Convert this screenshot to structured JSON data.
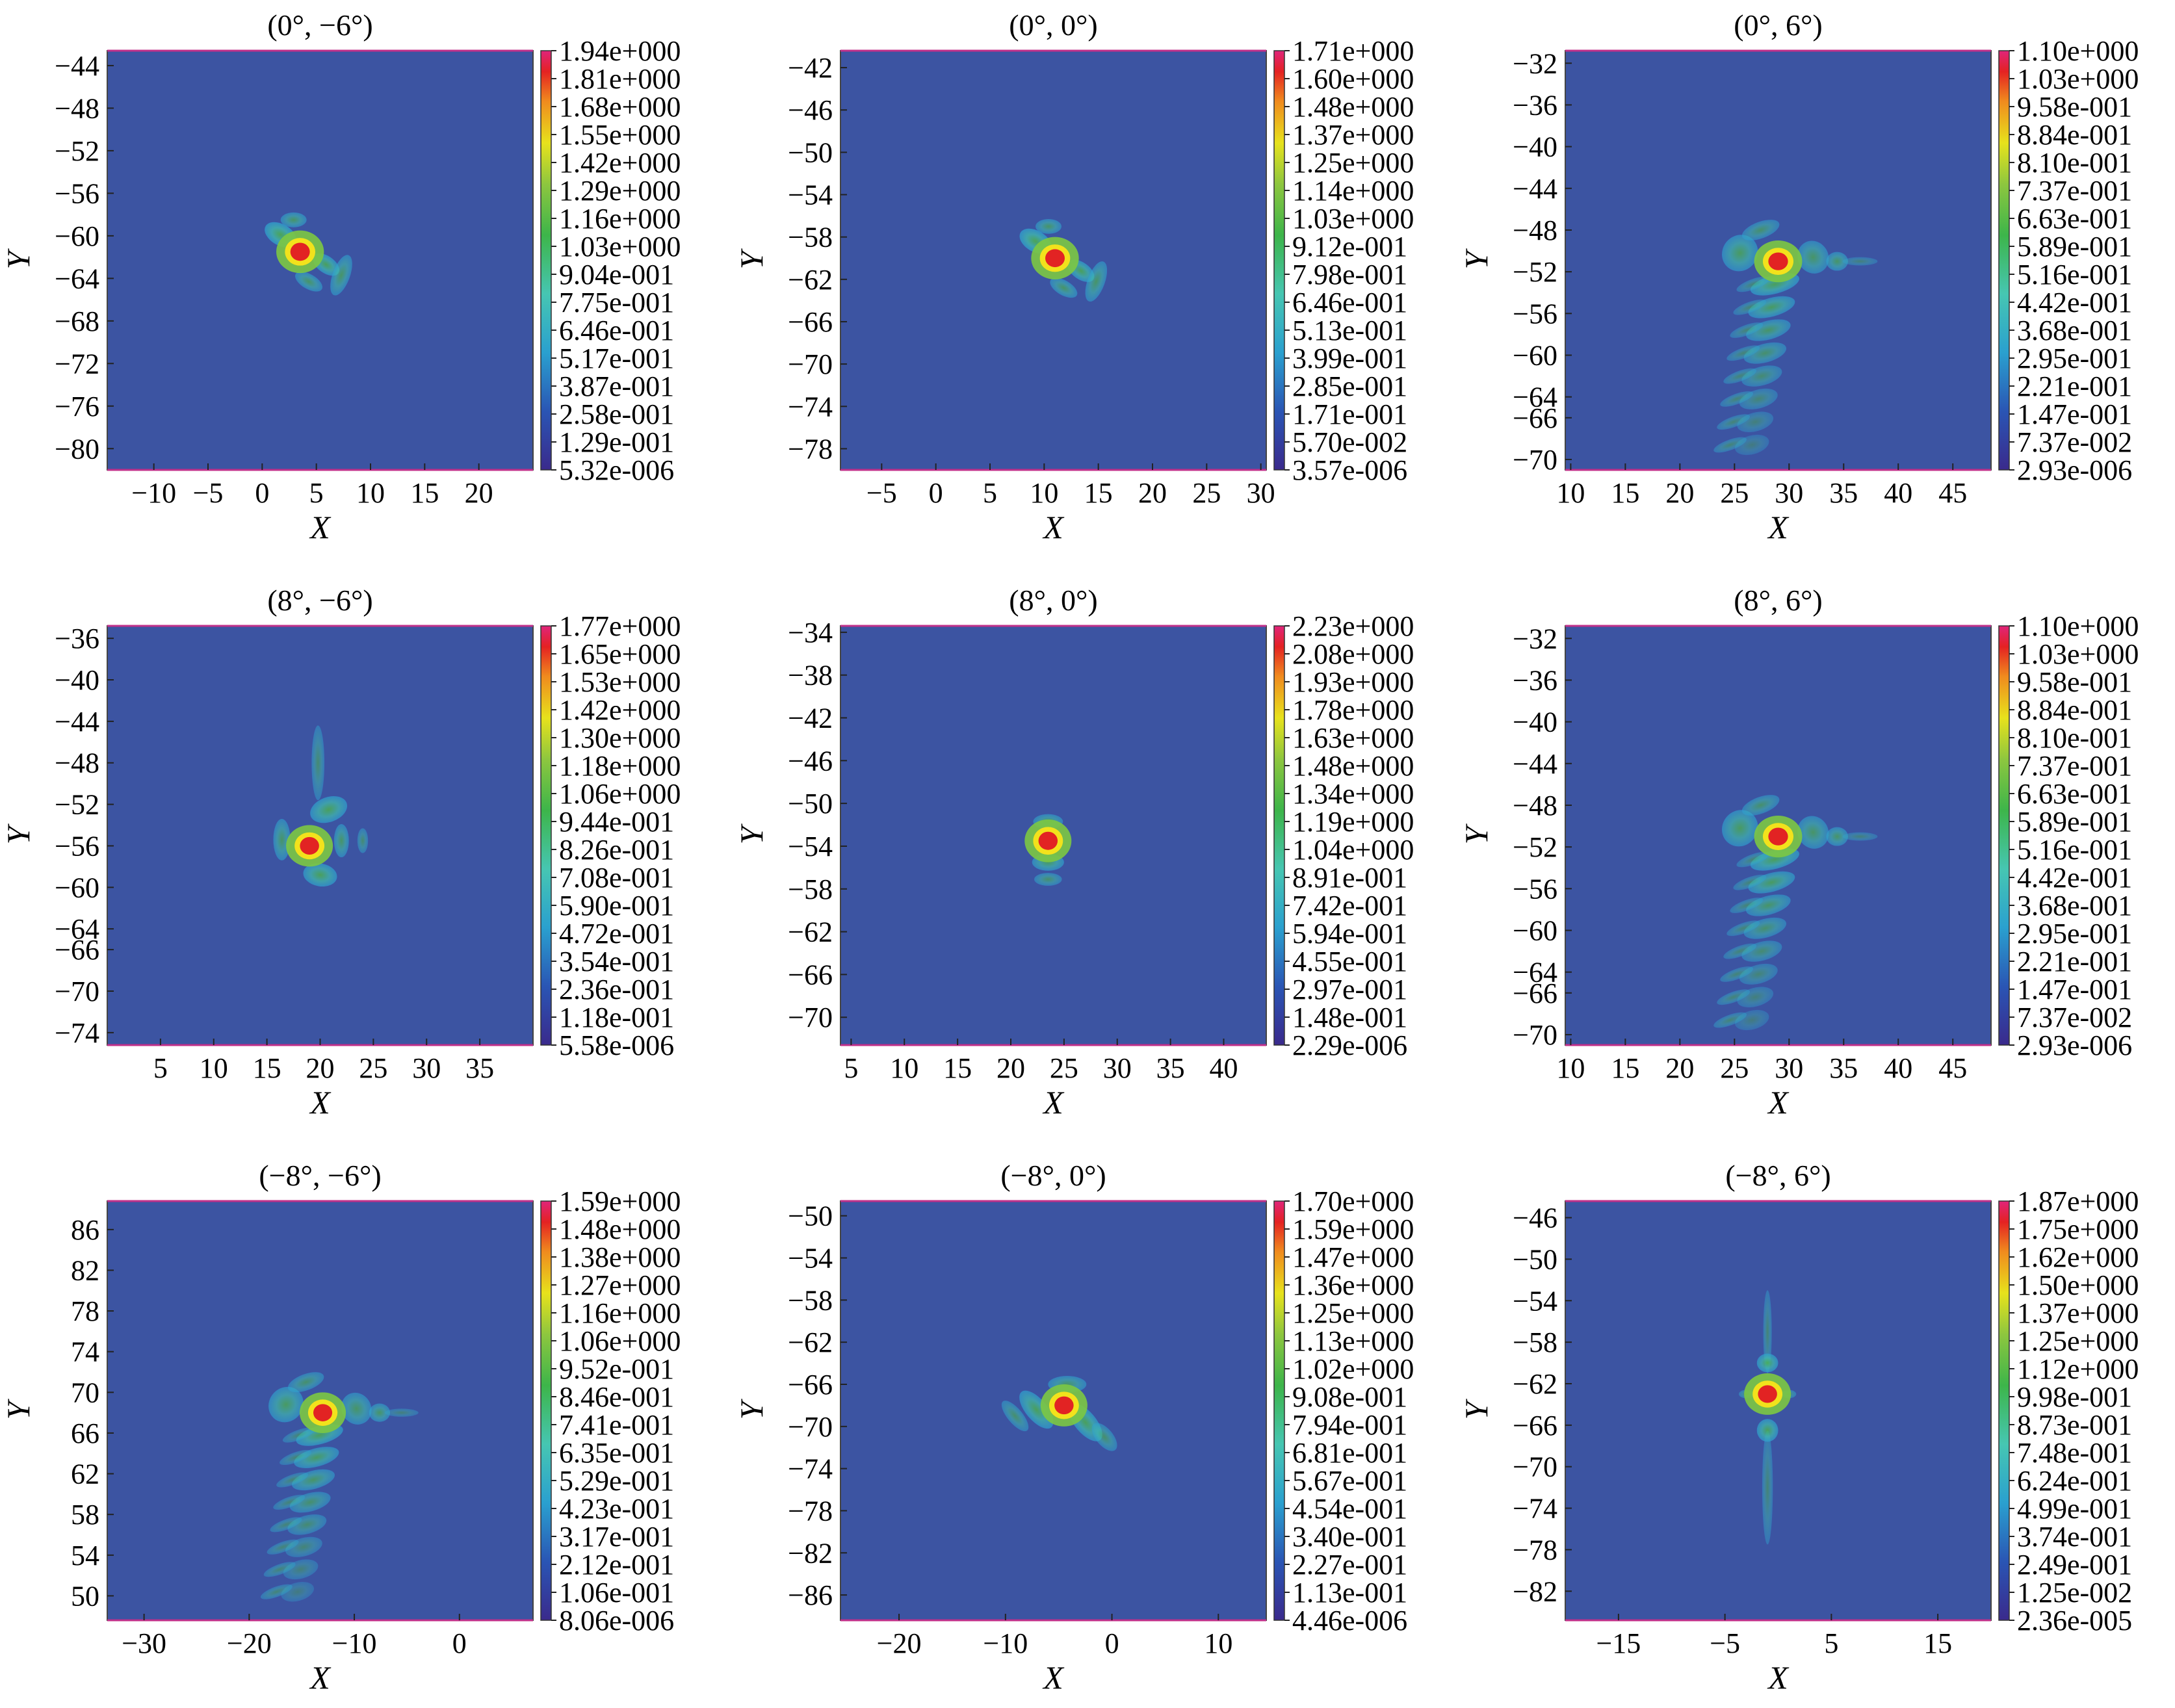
{
  "chart_data": [
    {
      "type": "heatmap",
      "title": "(0°, −6°)",
      "xlabel": "X",
      "ylabel": "Y",
      "xlim": [
        -14.3,
        25
      ],
      "ylim": [
        -82,
        -42.6
      ],
      "xticks": [
        -10,
        -5,
        0,
        5,
        10,
        15,
        20
      ],
      "xtick_labels": [
        "−10",
        "−5",
        "0",
        "5",
        "10",
        "15",
        "20"
      ],
      "yticks": [
        -44,
        -48,
        -52,
        -56,
        -60,
        -64,
        -68,
        -72,
        -76,
        -80
      ],
      "ytick_labels": [
        "−44",
        "−48",
        "−52",
        "−56",
        "−60",
        "−64",
        "−68",
        "−72",
        "−76",
        "−80"
      ],
      "colorbar_labels": [
        "1.94e+000",
        "1.81e+000",
        "1.68e+000",
        "1.55e+000",
        "1.42e+000",
        "1.29e+000",
        "1.16e+000",
        "1.03e+000",
        "9.04e-001",
        "7.75e-001",
        "6.46e-001",
        "5.17e-001",
        "3.87e-001",
        "2.58e-001",
        "1.29e-001",
        "5.32e-006"
      ],
      "peak": [
        3.5,
        -61.5
      ]
    },
    {
      "type": "heatmap",
      "title": "(0°, 0°)",
      "xlabel": "X",
      "ylabel": "Y",
      "xlim": [
        -8.8,
        30.5
      ],
      "ylim": [
        -80,
        -40.4
      ],
      "xticks": [
        -5,
        0,
        5,
        10,
        15,
        20,
        25,
        30
      ],
      "xtick_labels": [
        "−5",
        "0",
        "5",
        "10",
        "15",
        "20",
        "25",
        "30"
      ],
      "yticks": [
        -42,
        -46,
        -50,
        -54,
        -58,
        -62,
        -66,
        -70,
        -74,
        -78
      ],
      "ytick_labels": [
        "−42",
        "−46",
        "−50",
        "−54",
        "−58",
        "−62",
        "−66",
        "−70",
        "−74",
        "−78"
      ],
      "colorbar_labels": [
        "1.71e+000",
        "1.60e+000",
        "1.48e+000",
        "1.37e+000",
        "1.25e+000",
        "1.14e+000",
        "1.03e+000",
        "9.12e-001",
        "7.98e-001",
        "6.46e-001",
        "5.13e-001",
        "3.99e-001",
        "2.85e-001",
        "1.71e-001",
        "5.70e-002",
        "3.57e-006"
      ],
      "peak": [
        11,
        -60
      ]
    },
    {
      "type": "heatmap",
      "title": "(0°, 6°)",
      "xlabel": "X",
      "ylabel": "Y",
      "xlim": [
        9.5,
        48.5
      ],
      "ylim": [
        -71,
        -30.8
      ],
      "xticks": [
        10,
        15,
        20,
        25,
        30,
        35,
        40,
        45
      ],
      "xtick_labels": [
        "10",
        "15",
        "20",
        "25",
        "30",
        "35",
        "40",
        "45"
      ],
      "yticks": [
        -32,
        -36,
        -40,
        -44,
        -48,
        -52,
        -56,
        -60,
        -64,
        -66,
        -70
      ],
      "ytick_labels": [
        "−32",
        "−36",
        "−40",
        "−44",
        "−48",
        "−52",
        "−56",
        "−60",
        "−64",
        "−66",
        "−70"
      ],
      "colorbar_labels": [
        "1.10e+000",
        "1.03e+000",
        "9.58e-001",
        "8.84e-001",
        "8.10e-001",
        "7.37e-001",
        "6.63e-001",
        "5.89e-001",
        "5.16e-001",
        "4.42e-001",
        "3.68e-001",
        "2.95e-001",
        "2.21e-001",
        "1.47e-001",
        "7.37e-002",
        "2.93e-006"
      ],
      "peak": [
        29,
        -51
      ]
    },
    {
      "type": "heatmap",
      "title": "(8°, −6°)",
      "xlabel": "X",
      "ylabel": "Y",
      "xlim": [
        0,
        40
      ],
      "ylim": [
        -75.2,
        -34.8
      ],
      "xticks": [
        5,
        10,
        15,
        20,
        25,
        30,
        35
      ],
      "xtick_labels": [
        "5",
        "10",
        "15",
        "20",
        "25",
        "30",
        "35"
      ],
      "yticks": [
        -36,
        -40,
        -44,
        -48,
        -52,
        -56,
        -60,
        -64,
        -66,
        -70,
        -74
      ],
      "ytick_labels": [
        "−36",
        "−40",
        "−44",
        "−48",
        "−52",
        "−56",
        "−60",
        "−64",
        "−66",
        "−70",
        "−74"
      ],
      "colorbar_labels": [
        "1.77e+000",
        "1.65e+000",
        "1.53e+000",
        "1.42e+000",
        "1.30e+000",
        "1.18e+000",
        "1.06e+000",
        "9.44e-001",
        "8.26e-001",
        "7.08e-001",
        "5.90e-001",
        "4.72e-001",
        "3.54e-001",
        "2.36e-001",
        "1.18e-001",
        "5.58e-006"
      ],
      "peak": [
        19,
        -56
      ]
    },
    {
      "type": "heatmap",
      "title": "(8°, 0°)",
      "xlabel": "X",
      "ylabel": "Y",
      "xlim": [
        4,
        44
      ],
      "ylim": [
        -72.6,
        -33.4
      ],
      "xticks": [
        5,
        10,
        15,
        20,
        25,
        30,
        35,
        40
      ],
      "xtick_labels": [
        "5",
        "10",
        "15",
        "20",
        "25",
        "30",
        "35",
        "40"
      ],
      "yticks": [
        -34,
        -38,
        -42,
        -46,
        -50,
        -54,
        -58,
        -62,
        -66,
        -70
      ],
      "ytick_labels": [
        "−34",
        "−38",
        "−42",
        "−46",
        "−50",
        "−54",
        "−58",
        "−62",
        "−66",
        "−70"
      ],
      "colorbar_labels": [
        "2.23e+000",
        "2.08e+000",
        "1.93e+000",
        "1.78e+000",
        "1.63e+000",
        "1.48e+000",
        "1.34e+000",
        "1.19e+000",
        "1.04e+000",
        "8.91e-001",
        "7.42e-001",
        "5.94e-001",
        "4.55e-001",
        "2.97e-001",
        "1.48e-001",
        "2.29e-006"
      ],
      "peak": [
        23.5,
        -53.5
      ]
    },
    {
      "type": "heatmap",
      "title": "(8°, 6°)",
      "xlabel": "X",
      "ylabel": "Y",
      "xlim": [
        9.5,
        48.5
      ],
      "ylim": [
        -71,
        -30.8
      ],
      "xticks": [
        10,
        15,
        20,
        25,
        30,
        35,
        40,
        45
      ],
      "xtick_labels": [
        "10",
        "15",
        "20",
        "25",
        "30",
        "35",
        "40",
        "45"
      ],
      "yticks": [
        -32,
        -36,
        -40,
        -44,
        -48,
        -52,
        -56,
        -60,
        -64,
        -66,
        -70
      ],
      "ytick_labels": [
        "−32",
        "−36",
        "−40",
        "−44",
        "−48",
        "−52",
        "−56",
        "−60",
        "−64",
        "−66",
        "−70"
      ],
      "colorbar_labels": [
        "1.10e+000",
        "1.03e+000",
        "9.58e-001",
        "8.84e-001",
        "8.10e-001",
        "7.37e-001",
        "6.63e-001",
        "5.89e-001",
        "5.16e-001",
        "4.42e-001",
        "3.68e-001",
        "2.95e-001",
        "2.21e-001",
        "1.47e-001",
        "7.37e-002",
        "2.93e-006"
      ],
      "peak": [
        29,
        -51
      ]
    },
    {
      "type": "heatmap",
      "title": "(−8°, −6°)",
      "xlabel": "X",
      "ylabel": "Y",
      "xlim": [
        -33.5,
        7
      ],
      "ylim": [
        47.6,
        88.8
      ],
      "xticks": [
        -30,
        -20,
        -10,
        0
      ],
      "xtick_labels": [
        "−30",
        "−20",
        "−10",
        "0"
      ],
      "yticks": [
        86,
        82,
        78,
        74,
        70,
        66,
        62,
        58,
        54,
        50
      ],
      "ytick_labels": [
        "86",
        "82",
        "78",
        "74",
        "70",
        "66",
        "62",
        "58",
        "54",
        "50"
      ],
      "colorbar_labels": [
        "1.59e+000",
        "1.48e+000",
        "1.38e+000",
        "1.27e+000",
        "1.16e+000",
        "1.06e+000",
        "9.52e-001",
        "8.46e-001",
        "7.41e-001",
        "6.35e-001",
        "5.29e-001",
        "4.23e-001",
        "3.17e-001",
        "2.12e-001",
        "1.06e-001",
        "8.06e-006"
      ],
      "peak": [
        -13,
        68
      ]
    },
    {
      "type": "heatmap",
      "title": "(−8°, 0°)",
      "xlabel": "X",
      "ylabel": "Y",
      "xlim": [
        -25.5,
        14.5
      ],
      "ylim": [
        -88.4,
        -48.6
      ],
      "xticks": [
        -20,
        -10,
        0,
        10
      ],
      "xtick_labels": [
        "−20",
        "−10",
        "0",
        "10"
      ],
      "yticks": [
        -50,
        -54,
        -58,
        -62,
        -66,
        -70,
        -74,
        -78,
        -82,
        -86
      ],
      "ytick_labels": [
        "−50",
        "−54",
        "−58",
        "−62",
        "−66",
        "−70",
        "−74",
        "−78",
        "−82",
        "−86"
      ],
      "colorbar_labels": [
        "1.70e+000",
        "1.59e+000",
        "1.47e+000",
        "1.36e+000",
        "1.25e+000",
        "1.13e+000",
        "1.02e+000",
        "9.08e-001",
        "7.94e-001",
        "6.81e-001",
        "5.67e-001",
        "4.54e-001",
        "3.40e-001",
        "2.27e-001",
        "1.13e-001",
        "4.46e-006"
      ],
      "peak": [
        -4.5,
        -68
      ]
    },
    {
      "type": "heatmap",
      "title": "(−8°, 6°)",
      "xlabel": "X",
      "ylabel": "Y",
      "xlim": [
        -20,
        20
      ],
      "ylim": [
        -84.8,
        -44.4
      ],
      "xticks": [
        -15,
        -5,
        5,
        15
      ],
      "xtick_labels": [
        "−15",
        "−5",
        "5",
        "15"
      ],
      "yticks": [
        -46,
        -50,
        -54,
        -58,
        -62,
        -66,
        -70,
        -74,
        -78,
        -82
      ],
      "ytick_labels": [
        "−46",
        "−50",
        "−54",
        "−58",
        "−62",
        "−66",
        "−70",
        "−74",
        "−78",
        "−82"
      ],
      "colorbar_labels": [
        "1.87e+000",
        "1.75e+000",
        "1.62e+000",
        "1.50e+000",
        "1.37e+000",
        "1.25e+000",
        "1.12e+000",
        "9.98e-001",
        "8.73e-001",
        "7.48e-001",
        "6.24e-001",
        "4.99e-001",
        "3.74e-001",
        "2.49e-001",
        "1.25e-002",
        "2.36e-005"
      ],
      "peak": [
        -1,
        -63
      ]
    }
  ]
}
